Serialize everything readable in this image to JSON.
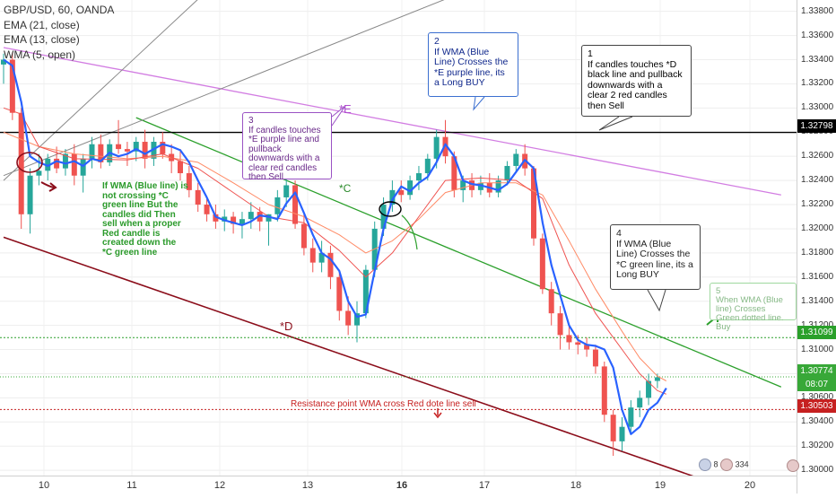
{
  "legend": {
    "symbol": "GBP/USD, 60, OANDA",
    "ema21": "EMA (21, close)",
    "ema13": "EMA (13, close)",
    "wma5": "WMA (5, open)"
  },
  "annotations": {
    "note1": "1\nIf candles touches *D black line and pullback downwards with a clear 2 red candles then Sell",
    "note2": "2\nIf WMA (Blue Line) Crosses the *E purple line, its a Long BUY",
    "note3": "3\nIf candles touches *E purple line and pullback downwards with a clear red candles then Sell",
    "note4": "4\nIf WMA (Blue Line) Crosses the *C green line, its a Long BUY",
    "note5": "5\nWhen WMA (Blue line) Crosses Green dotted line. Buy",
    "note6": "If WMA (Blue line) is not crossing *C green line But the candles did Then sell when a proper Red candle is created down the *C green line",
    "resistance": "Resistance point WMA cross Red dote line sell",
    "label_E": "*E",
    "label_C": "*C",
    "label_D": "*D",
    "events_badge": "8",
    "events_badge_2": "334"
  },
  "price_badges": {
    "black_line": "1.32798",
    "green_dotted": "1.31099",
    "current": "1.30774",
    "countdown": "08:07",
    "red_dotted": "1.30503"
  },
  "colors": {
    "bull": "#26a69a",
    "bear": "#ef5350",
    "wma": "#2962ff",
    "ema13": "#ef5350",
    "ema21": "#ff8a65",
    "purple_line": "#d27de2",
    "green_line": "#2ca02c",
    "black_line": "#000000",
    "maroon_line": "#8b0d1a",
    "gray_line": "#888888"
  },
  "chart_data": {
    "type": "candlestick",
    "symbol": "GBP/USD",
    "timeframe": "60",
    "source": "OANDA",
    "ylim": [
      1.299,
      1.339
    ],
    "y_ticks": [
      1.3,
      1.302,
      1.304,
      1.306,
      1.308,
      1.31,
      1.312,
      1.314,
      1.316,
      1.318,
      1.32,
      1.322,
      1.324,
      1.326,
      1.328,
      1.33,
      1.332,
      1.334,
      1.336,
      1.338
    ],
    "x_ticks": [
      "10",
      "11",
      "12",
      "13",
      "16",
      "17",
      "18",
      "19",
      "20"
    ],
    "x_ticks_bold": [
      "16"
    ],
    "horizontal_levels": [
      {
        "name": "black",
        "price": 1.32798,
        "style": "solid"
      },
      {
        "name": "green-dotted",
        "price": 1.31099,
        "style": "dotted"
      },
      {
        "name": "current",
        "price": 1.30774,
        "style": "dotted"
      },
      {
        "name": "red-dotted",
        "price": 1.30503,
        "style": "dotted"
      }
    ],
    "trendlines": [
      {
        "name": "*E purple",
        "points": [
          [
            0,
            1.335
          ],
          [
            88,
            1.3228
          ]
        ]
      },
      {
        "name": "*C green",
        "points": [
          [
            15,
            1.3292
          ],
          [
            88,
            1.3069
          ]
        ]
      },
      {
        "name": "*D maroon",
        "points": [
          [
            0,
            1.3193
          ],
          [
            86,
            1.2975
          ]
        ]
      },
      {
        "name": "gray-1",
        "points": [
          [
            0,
            1.3244
          ],
          [
            51,
            1.3393
          ]
        ]
      },
      {
        "name": "gray-2",
        "points": [
          [
            0,
            1.324
          ],
          [
            22,
            1.339
          ]
        ]
      }
    ],
    "wma_path": [
      [
        0,
        1.334
      ],
      [
        1,
        1.3335
      ],
      [
        2,
        1.3305
      ],
      [
        3,
        1.326
      ],
      [
        4,
        1.3255
      ],
      [
        5,
        1.3252
      ],
      [
        6,
        1.3256
      ],
      [
        7,
        1.3254
      ],
      [
        8,
        1.3256
      ],
      [
        9,
        1.3252
      ],
      [
        10,
        1.3258
      ],
      [
        11,
        1.3256
      ],
      [
        12,
        1.3263
      ],
      [
        13,
        1.326
      ],
      [
        14,
        1.3262
      ],
      [
        15,
        1.3266
      ],
      [
        16,
        1.3262
      ],
      [
        17,
        1.3266
      ],
      [
        18,
        1.327
      ],
      [
        19,
        1.3268
      ],
      [
        20,
        1.3265
      ],
      [
        21,
        1.3255
      ],
      [
        22,
        1.324
      ],
      [
        23,
        1.3226
      ],
      [
        24,
        1.321
      ],
      [
        25,
        1.3207
      ],
      [
        26,
        1.3205
      ],
      [
        27,
        1.3203
      ],
      [
        28,
        1.3206
      ],
      [
        29,
        1.3211
      ],
      [
        30,
        1.321
      ],
      [
        31,
        1.3208
      ],
      [
        32,
        1.3221
      ],
      [
        33,
        1.323
      ],
      [
        34,
        1.3213
      ],
      [
        35,
        1.3195
      ],
      [
        36,
        1.318
      ],
      [
        37,
        1.3175
      ],
      [
        38,
        1.3165
      ],
      [
        39,
        1.314
      ],
      [
        40,
        1.3127
      ],
      [
        41,
        1.3129
      ],
      [
        42,
        1.3165
      ],
      [
        43,
        1.32
      ],
      [
        44,
        1.3224
      ],
      [
        45,
        1.3235
      ],
      [
        46,
        1.3231
      ],
      [
        47,
        1.3238
      ],
      [
        48,
        1.3243
      ],
      [
        49,
        1.3255
      ],
      [
        50,
        1.327
      ],
      [
        51,
        1.326
      ],
      [
        52,
        1.324
      ],
      [
        53,
        1.3237
      ],
      [
        54,
        1.3236
      ],
      [
        55,
        1.3234
      ],
      [
        56,
        1.3232
      ],
      [
        57,
        1.3237
      ],
      [
        58,
        1.3247
      ],
      [
        59,
        1.3257
      ],
      [
        60,
        1.325
      ],
      [
        61,
        1.3205
      ],
      [
        62,
        1.317
      ],
      [
        63,
        1.3145
      ],
      [
        64,
        1.312
      ],
      [
        65,
        1.3108
      ],
      [
        66,
        1.3104
      ],
      [
        67,
        1.3103
      ],
      [
        68,
        1.31
      ],
      [
        69,
        1.3085
      ],
      [
        70,
        1.305
      ],
      [
        71,
        1.303
      ],
      [
        72,
        1.3036
      ],
      [
        73,
        1.305
      ],
      [
        74,
        1.3056
      ],
      [
        75,
        1.3068
      ]
    ],
    "ema13_path": [
      [
        0,
        1.33
      ],
      [
        2,
        1.3295
      ],
      [
        4,
        1.3268
      ],
      [
        8,
        1.3258
      ],
      [
        14,
        1.3257
      ],
      [
        18,
        1.3262
      ],
      [
        22,
        1.325
      ],
      [
        26,
        1.323
      ],
      [
        30,
        1.321
      ],
      [
        34,
        1.3205
      ],
      [
        38,
        1.3182
      ],
      [
        41,
        1.316
      ],
      [
        44,
        1.318
      ],
      [
        47,
        1.321
      ],
      [
        50,
        1.324
      ],
      [
        54,
        1.3242
      ],
      [
        58,
        1.324
      ],
      [
        61,
        1.3225
      ],
      [
        64,
        1.317
      ],
      [
        67,
        1.313
      ],
      [
        70,
        1.31
      ],
      [
        72,
        1.308
      ],
      [
        74,
        1.3066
      ],
      [
        75,
        1.3063
      ]
    ],
    "ema21_path": [
      [
        0,
        1.328
      ],
      [
        4,
        1.3268
      ],
      [
        8,
        1.3262
      ],
      [
        14,
        1.3258
      ],
      [
        18,
        1.326
      ],
      [
        22,
        1.3255
      ],
      [
        26,
        1.3238
      ],
      [
        30,
        1.322
      ],
      [
        34,
        1.321
      ],
      [
        38,
        1.3195
      ],
      [
        41,
        1.318
      ],
      [
        44,
        1.319
      ],
      [
        47,
        1.3208
      ],
      [
        50,
        1.323
      ],
      [
        54,
        1.3238
      ],
      [
        58,
        1.3238
      ],
      [
        61,
        1.3228
      ],
      [
        64,
        1.319
      ],
      [
        67,
        1.315
      ],
      [
        70,
        1.3115
      ],
      [
        72,
        1.3093
      ],
      [
        74,
        1.3078
      ],
      [
        75,
        1.3074
      ]
    ],
    "candles": [
      [
        1.3336,
        1.3345,
        1.332,
        1.334
      ],
      [
        1.334,
        1.3346,
        1.329,
        1.3296
      ],
      [
        1.3296,
        1.33,
        1.32,
        1.3212
      ],
      [
        1.3212,
        1.325,
        1.3196,
        1.3244
      ],
      [
        1.3244,
        1.3262,
        1.3236,
        1.3248
      ],
      [
        1.3248,
        1.3262,
        1.324,
        1.3258
      ],
      [
        1.3258,
        1.3268,
        1.3246,
        1.325
      ],
      [
        1.325,
        1.3266,
        1.3244,
        1.3262
      ],
      [
        1.3262,
        1.327,
        1.3236,
        1.3244
      ],
      [
        1.3244,
        1.3262,
        1.323,
        1.3258
      ],
      [
        1.3258,
        1.3276,
        1.325,
        1.327
      ],
      [
        1.327,
        1.3278,
        1.325,
        1.3255
      ],
      [
        1.3255,
        1.3274,
        1.3252,
        1.327
      ],
      [
        1.327,
        1.329,
        1.3262,
        1.3266
      ],
      [
        1.3266,
        1.3272,
        1.3252,
        1.3264
      ],
      [
        1.3264,
        1.3276,
        1.3256,
        1.3272
      ],
      [
        1.3272,
        1.3282,
        1.325,
        1.3258
      ],
      [
        1.3258,
        1.3276,
        1.3252,
        1.3272
      ],
      [
        1.3272,
        1.328,
        1.3258,
        1.3262
      ],
      [
        1.3262,
        1.327,
        1.3246,
        1.3256
      ],
      [
        1.3256,
        1.3266,
        1.324,
        1.3246
      ],
      [
        1.3246,
        1.3252,
        1.3226,
        1.3232
      ],
      [
        1.3232,
        1.3238,
        1.3214,
        1.322
      ],
      [
        1.322,
        1.3226,
        1.3206,
        1.3212
      ],
      [
        1.3212,
        1.322,
        1.32,
        1.3206
      ],
      [
        1.3206,
        1.3216,
        1.3198,
        1.321
      ],
      [
        1.321,
        1.3214,
        1.3196,
        1.3204
      ],
      [
        1.3204,
        1.3214,
        1.3192,
        1.3208
      ],
      [
        1.3208,
        1.3222,
        1.32,
        1.3214
      ],
      [
        1.3214,
        1.3218,
        1.3198,
        1.3206
      ],
      [
        1.3206,
        1.3212,
        1.3186,
        1.3212
      ],
      [
        1.3212,
        1.3232,
        1.3206,
        1.3226
      ],
      [
        1.3226,
        1.3242,
        1.3218,
        1.3236
      ],
      [
        1.3236,
        1.324,
        1.32,
        1.3204
      ],
      [
        1.3204,
        1.3212,
        1.3178,
        1.3184
      ],
      [
        1.3184,
        1.3192,
        1.3164,
        1.3172
      ],
      [
        1.3172,
        1.319,
        1.3164,
        1.318
      ],
      [
        1.318,
        1.3186,
        1.315,
        1.316
      ],
      [
        1.316,
        1.3166,
        1.3124,
        1.3132
      ],
      [
        1.3132,
        1.3144,
        1.3112,
        1.312
      ],
      [
        1.312,
        1.314,
        1.3106,
        1.313
      ],
      [
        1.313,
        1.317,
        1.3126,
        1.3166
      ],
      [
        1.3166,
        1.3206,
        1.316,
        1.32
      ],
      [
        1.32,
        1.3226,
        1.3194,
        1.322
      ],
      [
        1.322,
        1.324,
        1.3214,
        1.3232
      ],
      [
        1.3232,
        1.324,
        1.3222,
        1.3228
      ],
      [
        1.3228,
        1.3244,
        1.3224,
        1.324
      ],
      [
        1.324,
        1.3252,
        1.3232,
        1.3246
      ],
      [
        1.3246,
        1.3262,
        1.324,
        1.3258
      ],
      [
        1.3258,
        1.3282,
        1.325,
        1.3276
      ],
      [
        1.3276,
        1.329,
        1.3254,
        1.326
      ],
      [
        1.326,
        1.3264,
        1.3226,
        1.3232
      ],
      [
        1.3232,
        1.3244,
        1.3222,
        1.324
      ],
      [
        1.324,
        1.3246,
        1.3226,
        1.3232
      ],
      [
        1.3232,
        1.3244,
        1.3228,
        1.3238
      ],
      [
        1.3238,
        1.3246,
        1.3226,
        1.323
      ],
      [
        1.323,
        1.3244,
        1.3226,
        1.324
      ],
      [
        1.324,
        1.3256,
        1.3236,
        1.3252
      ],
      [
        1.3252,
        1.3266,
        1.3246,
        1.3262
      ],
      [
        1.3262,
        1.327,
        1.3244,
        1.325
      ],
      [
        1.325,
        1.3252,
        1.3186,
        1.3192
      ],
      [
        1.3192,
        1.3196,
        1.3146,
        1.315
      ],
      [
        1.315,
        1.3156,
        1.312,
        1.313
      ],
      [
        1.313,
        1.3136,
        1.31,
        1.3112
      ],
      [
        1.3112,
        1.312,
        1.31,
        1.3106
      ],
      [
        1.3106,
        1.3112,
        1.3096,
        1.3104
      ],
      [
        1.3104,
        1.311,
        1.3094,
        1.31
      ],
      [
        1.31,
        1.3104,
        1.308,
        1.3086
      ],
      [
        1.3086,
        1.309,
        1.304,
        1.3046
      ],
      [
        1.3046,
        1.305,
        1.3012,
        1.3024
      ],
      [
        1.3024,
        1.3044,
        1.3016,
        1.3036
      ],
      [
        1.3036,
        1.3058,
        1.303,
        1.3052
      ],
      [
        1.3052,
        1.3066,
        1.3044,
        1.306
      ],
      [
        1.306,
        1.308,
        1.3054,
        1.3074
      ],
      [
        1.3074,
        1.308,
        1.3068,
        1.3077
      ]
    ]
  }
}
